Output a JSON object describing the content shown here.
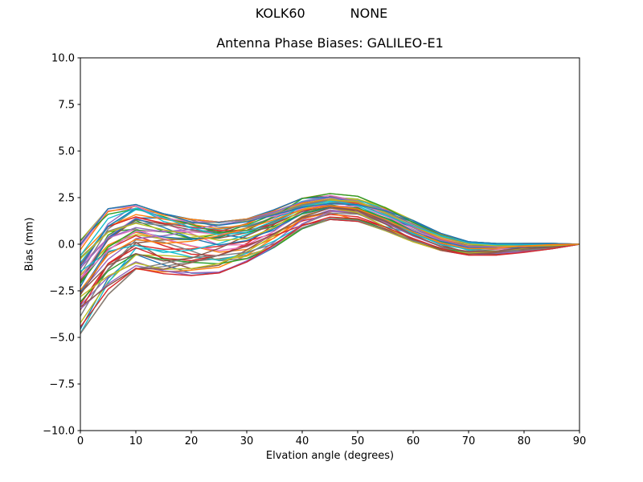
{
  "figure": {
    "suptitle": "KOLK60           NONE",
    "axes_title": "Antenna Phase Biases: GALILEO-E1",
    "background": "#ffffff",
    "text_color": "#000000"
  },
  "chart_data": {
    "type": "line",
    "suptitle": "KOLK60           NONE",
    "title": "Antenna Phase Biases: GALILEO-E1",
    "xlabel": "Elvation angle (degrees)",
    "ylabel": "Bias (mm)",
    "xlim": [
      0,
      90
    ],
    "ylim": [
      -10.0,
      10.0
    ],
    "grid": false,
    "legend": "none",
    "xticks": [
      0,
      10,
      20,
      30,
      40,
      50,
      60,
      70,
      80,
      90
    ],
    "yticks": [
      {
        "value": 10.0,
        "label": "10.0"
      },
      {
        "value": 7.5,
        "label": "7.5"
      },
      {
        "value": 5.0,
        "label": "5.0"
      },
      {
        "value": 2.5,
        "label": "2.5"
      },
      {
        "value": 0.0,
        "label": "0.0"
      },
      {
        "value": -2.5,
        "label": "−2.5"
      },
      {
        "value": -5.0,
        "label": "−5.0"
      },
      {
        "value": -7.5,
        "label": "−7.5"
      },
      {
        "value": -10.0,
        "label": "−10.0"
      }
    ],
    "x": [
      0,
      5,
      10,
      15,
      20,
      25,
      30,
      35,
      40,
      45,
      50,
      55,
      60,
      65,
      70,
      75,
      80,
      85,
      90
    ],
    "envelope_top": [
      0.3,
      2.0,
      2.2,
      1.7,
      1.4,
      1.25,
      1.4,
      1.9,
      2.5,
      2.75,
      2.6,
      2.0,
      1.3,
      0.6,
      0.15,
      0.05,
      0.05,
      0.05,
      0.0
    ],
    "envelope_bottom": [
      -4.9,
      -2.8,
      -1.4,
      -1.65,
      -1.75,
      -1.6,
      -1.0,
      -0.2,
      0.8,
      1.3,
      1.2,
      0.7,
      0.1,
      -0.35,
      -0.6,
      -0.6,
      -0.45,
      -0.25,
      0.0
    ],
    "n_lines": 52,
    "line_width": 1.4,
    "seed": 7,
    "colors": [
      "#1f77b4",
      "#ff7f0e",
      "#2ca02c",
      "#d62728",
      "#9467bd",
      "#8c564b",
      "#e377c2",
      "#7f7f7f",
      "#bcbd22",
      "#17becf"
    ]
  }
}
